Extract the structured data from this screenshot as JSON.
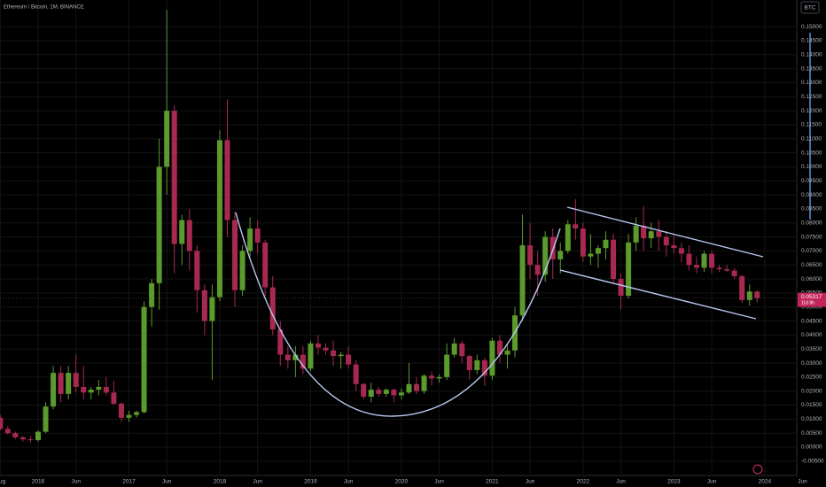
{
  "chart_data": {
    "type": "candlestick",
    "title": "Ethereum / Bitcoin, 1M, BINANCE",
    "currency_button": "BTC",
    "last_price": {
      "label": "0.05317",
      "countdown": "11d 8h"
    },
    "colors": {
      "up": "#5b9a2d",
      "down": "#a8294f"
    },
    "x": [
      "2015-08",
      "2015-09",
      "2015-10",
      "2015-11",
      "2015-12",
      "2016-01",
      "2016-02",
      "2016-03",
      "2016-04",
      "2016-05",
      "2016-06",
      "2016-07",
      "2016-08",
      "2016-09",
      "2016-10",
      "2016-11",
      "2016-12",
      "2017-01",
      "2017-02",
      "2017-03",
      "2017-04",
      "2017-05",
      "2017-06",
      "2017-07",
      "2017-08",
      "2017-09",
      "2017-10",
      "2017-11",
      "2017-12",
      "2018-01",
      "2018-02",
      "2018-03",
      "2018-04",
      "2018-05",
      "2018-06",
      "2018-07",
      "2018-08",
      "2018-09",
      "2018-10",
      "2018-11",
      "2018-12",
      "2019-01",
      "2019-02",
      "2019-03",
      "2019-04",
      "2019-05",
      "2019-06",
      "2019-07",
      "2019-08",
      "2019-09",
      "2019-10",
      "2019-11",
      "2019-12",
      "2020-01",
      "2020-02",
      "2020-03",
      "2020-04",
      "2020-05",
      "2020-06",
      "2020-07",
      "2020-08",
      "2020-09",
      "2020-10",
      "2020-11",
      "2020-12",
      "2021-01",
      "2021-02",
      "2021-03",
      "2021-04",
      "2021-05",
      "2021-06",
      "2021-07",
      "2021-08",
      "2021-09",
      "2021-10",
      "2021-11",
      "2021-12",
      "2022-01",
      "2022-02",
      "2022-03",
      "2022-04",
      "2022-05",
      "2022-06",
      "2022-07",
      "2022-08",
      "2022-09",
      "2022-10",
      "2022-11",
      "2022-12",
      "2023-01",
      "2023-02",
      "2023-03",
      "2023-04",
      "2023-05",
      "2023-06",
      "2023-07",
      "2023-08",
      "2023-09",
      "2023-10",
      "2023-11",
      "2023-12"
    ],
    "open": [
      0.0105,
      0.0065,
      0.005,
      0.0035,
      0.0028,
      0.0025,
      0.0055,
      0.0145,
      0.0265,
      0.019,
      0.0265,
      0.0215,
      0.0195,
      0.0205,
      0.0215,
      0.0195,
      0.0155,
      0.0105,
      0.0115,
      0.0125,
      0.05,
      0.0585,
      0.1,
      0.12,
      0.0725,
      0.081,
      0.07,
      0.056,
      0.045,
      0.0535,
      0.1095,
      0.081,
      0.056,
      0.07,
      0.078,
      0.073,
      0.057,
      0.042,
      0.033,
      0.031,
      0.033,
      0.028,
      0.037,
      0.0355,
      0.0345,
      0.0325,
      0.033,
      0.0295,
      0.0225,
      0.018,
      0.0205,
      0.019,
      0.0205,
      0.0185,
      0.0195,
      0.0225,
      0.02,
      0.0255,
      0.0245,
      0.025,
      0.033,
      0.037,
      0.0325,
      0.0275,
      0.031,
      0.0255,
      0.038,
      0.033,
      0.0345,
      0.047,
      0.072,
      0.065,
      0.0615,
      0.075,
      0.067,
      0.07,
      0.0795,
      0.078,
      0.068,
      0.069,
      0.071,
      0.074,
      0.06,
      0.054,
      0.073,
      0.079,
      0.0745,
      0.077,
      0.075,
      0.072,
      0.071,
      0.069,
      0.065,
      0.064,
      0.069,
      0.064,
      0.0635,
      0.063,
      0.061,
      0.0525,
      0.0555
    ],
    "high": [
      0.0115,
      0.0075,
      0.0055,
      0.004,
      0.004,
      0.006,
      0.016,
      0.029,
      0.029,
      0.029,
      0.033,
      0.029,
      0.0215,
      0.024,
      0.025,
      0.0235,
      0.016,
      0.013,
      0.013,
      0.052,
      0.06,
      0.11,
      0.156,
      0.122,
      0.083,
      0.085,
      0.072,
      0.058,
      0.058,
      0.113,
      0.124,
      0.084,
      0.072,
      0.082,
      0.081,
      0.074,
      0.061,
      0.045,
      0.036,
      0.036,
      0.036,
      0.038,
      0.04,
      0.037,
      0.038,
      0.034,
      0.036,
      0.031,
      0.023,
      0.023,
      0.0215,
      0.021,
      0.021,
      0.021,
      0.03,
      0.025,
      0.026,
      0.027,
      0.026,
      0.037,
      0.039,
      0.038,
      0.033,
      0.033,
      0.032,
      0.039,
      0.04,
      0.037,
      0.05,
      0.083,
      0.08,
      0.07,
      0.077,
      0.078,
      0.073,
      0.081,
      0.0885,
      0.08,
      0.076,
      0.072,
      0.077,
      0.076,
      0.062,
      0.076,
      0.082,
      0.086,
      0.08,
      0.081,
      0.077,
      0.076,
      0.073,
      0.072,
      0.068,
      0.07,
      0.07,
      0.065,
      0.065,
      0.064,
      0.0615,
      0.058,
      0.056
    ],
    "low": [
      0.006,
      0.0045,
      0.003,
      0.002,
      0.0018,
      0.002,
      0.005,
      0.0135,
      0.016,
      0.017,
      0.0195,
      0.017,
      0.017,
      0.0185,
      0.0185,
      0.015,
      0.009,
      0.009,
      0.0105,
      0.012,
      0.043,
      0.049,
      0.09,
      0.062,
      0.065,
      0.063,
      0.048,
      0.04,
      0.024,
      0.052,
      0.075,
      0.05,
      0.054,
      0.068,
      0.069,
      0.054,
      0.04,
      0.029,
      0.028,
      0.025,
      0.026,
      0.027,
      0.033,
      0.033,
      0.029,
      0.028,
      0.028,
      0.02,
      0.017,
      0.016,
      0.018,
      0.018,
      0.016,
      0.017,
      0.019,
      0.019,
      0.019,
      0.022,
      0.023,
      0.024,
      0.032,
      0.03,
      0.024,
      0.026,
      0.022,
      0.024,
      0.03,
      0.028,
      0.032,
      0.045,
      0.06,
      0.054,
      0.059,
      0.06,
      0.062,
      0.069,
      0.074,
      0.066,
      0.065,
      0.064,
      0.067,
      0.058,
      0.049,
      0.053,
      0.07,
      0.07,
      0.071,
      0.07,
      0.068,
      0.069,
      0.066,
      0.063,
      0.062,
      0.0625,
      0.062,
      0.0625,
      0.0625,
      0.06,
      0.0515,
      0.0505,
      0.0515
    ],
    "close": [
      0.0065,
      0.005,
      0.0035,
      0.0028,
      0.0025,
      0.0055,
      0.0145,
      0.0265,
      0.019,
      0.0265,
      0.0215,
      0.0195,
      0.0205,
      0.0215,
      0.0195,
      0.0155,
      0.0105,
      0.0115,
      0.0125,
      0.05,
      0.0585,
      0.1,
      0.12,
      0.0725,
      0.081,
      0.07,
      0.056,
      0.045,
      0.0535,
      0.1095,
      0.081,
      0.056,
      0.07,
      0.078,
      0.073,
      0.057,
      0.042,
      0.033,
      0.031,
      0.033,
      0.028,
      0.037,
      0.0355,
      0.0345,
      0.0325,
      0.033,
      0.0295,
      0.0225,
      0.018,
      0.0205,
      0.019,
      0.0205,
      0.0185,
      0.0195,
      0.0225,
      0.02,
      0.0255,
      0.0245,
      0.025,
      0.033,
      0.037,
      0.0325,
      0.0275,
      0.031,
      0.0255,
      0.038,
      0.033,
      0.0345,
      0.047,
      0.072,
      0.065,
      0.0615,
      0.075,
      0.067,
      0.07,
      0.0795,
      0.078,
      0.068,
      0.069,
      0.071,
      0.074,
      0.06,
      0.054,
      0.073,
      0.079,
      0.0745,
      0.077,
      0.075,
      0.072,
      0.071,
      0.069,
      0.065,
      0.064,
      0.069,
      0.064,
      0.0635,
      0.063,
      0.061,
      0.0525,
      0.0555,
      0.05317
    ],
    "xlim": [
      "2015-08",
      "2024-05"
    ],
    "xticks": [
      {
        "value": "2015-08",
        "label": "Aug"
      },
      {
        "value": "2016-01",
        "label": "2016"
      },
      {
        "value": "2016-06",
        "label": "Jun"
      },
      {
        "value": "2017-01",
        "label": "2017"
      },
      {
        "value": "2017-06",
        "label": "Jun"
      },
      {
        "value": "2018-01",
        "label": "2018"
      },
      {
        "value": "2018-06",
        "label": "Jun"
      },
      {
        "value": "2019-01",
        "label": "2019"
      },
      {
        "value": "2019-06",
        "label": "Jun"
      },
      {
        "value": "2020-01",
        "label": "2020"
      },
      {
        "value": "2020-06",
        "label": "Jun"
      },
      {
        "value": "2021-01",
        "label": "2021"
      },
      {
        "value": "2021-06",
        "label": "Jun"
      },
      {
        "value": "2022-01",
        "label": "2022"
      },
      {
        "value": "2022-06",
        "label": "Jun"
      },
      {
        "value": "2023-01",
        "label": "2023"
      },
      {
        "value": "2023-06",
        "label": "Jun"
      },
      {
        "value": "2024-01",
        "label": "2024"
      },
      {
        "value": "2024-06",
        "label": "Jun"
      }
    ],
    "ylim": [
      -0.0101,
      0.1595
    ],
    "yticks": [
      {
        "value": -0.005,
        "label": "-0.00500"
      },
      {
        "value": 0,
        "label": "0.00000"
      },
      {
        "value": 0.005,
        "label": "0.00500"
      },
      {
        "value": 0.01,
        "label": "0.01000"
      },
      {
        "value": 0.015,
        "label": "0.01500"
      },
      {
        "value": 0.02,
        "label": "0.02000"
      },
      {
        "value": 0.025,
        "label": "0.02500"
      },
      {
        "value": 0.03,
        "label": "0.03000"
      },
      {
        "value": 0.035,
        "label": "0.03500"
      },
      {
        "value": 0.04,
        "label": "0.04000"
      },
      {
        "value": 0.045,
        "label": "0.04500"
      },
      {
        "value": 0.05,
        "label": "0.05000"
      },
      {
        "value": 0.055,
        "label": "0.05500"
      },
      {
        "value": 0.06,
        "label": "0.06000"
      },
      {
        "value": 0.065,
        "label": "0.06500"
      },
      {
        "value": 0.07,
        "label": "0.07000"
      },
      {
        "value": 0.075,
        "label": "0.07500"
      },
      {
        "value": 0.08,
        "label": "0.08000"
      },
      {
        "value": 0.085,
        "label": "0.08500"
      },
      {
        "value": 0.09,
        "label": "0.09000"
      },
      {
        "value": 0.095,
        "label": "0.09500"
      },
      {
        "value": 0.1,
        "label": "0.10000"
      },
      {
        "value": 0.105,
        "label": "0.10500"
      },
      {
        "value": 0.11,
        "label": "0.11000"
      },
      {
        "value": 0.115,
        "label": "0.11500"
      },
      {
        "value": 0.12,
        "label": "0.12000"
      },
      {
        "value": 0.125,
        "label": "0.12500"
      },
      {
        "value": 0.13,
        "label": "0.13000"
      },
      {
        "value": 0.135,
        "label": "0.13500"
      },
      {
        "value": 0.14,
        "label": "0.14000"
      },
      {
        "value": 0.145,
        "label": "0.14500"
      },
      {
        "value": 0.15,
        "label": "0.15000"
      }
    ],
    "grid": true
  }
}
